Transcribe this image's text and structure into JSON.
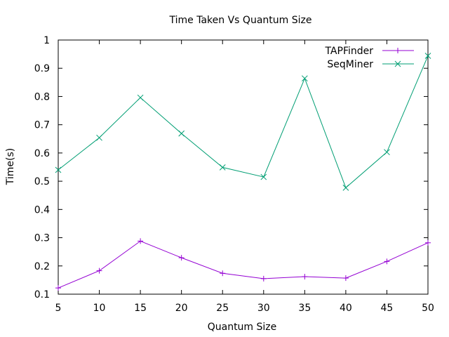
{
  "chart_data": {
    "type": "line",
    "title": "Time Taken Vs Quantum Size",
    "xlabel": "Quantum Size",
    "ylabel": "Time(s)",
    "xlim": [
      5,
      50
    ],
    "ylim": [
      0.1,
      1
    ],
    "x_ticks": [
      5,
      10,
      15,
      20,
      25,
      30,
      35,
      40,
      45,
      50
    ],
    "y_ticks": [
      0.1,
      0.2,
      0.3,
      0.4,
      0.5,
      0.6,
      0.7,
      0.8,
      0.9,
      1
    ],
    "y_tick_labels": [
      "0.1",
      "0.2",
      "0.3",
      "0.4",
      "0.5",
      "0.6",
      "0.7",
      "0.8",
      "0.9",
      "1"
    ],
    "grid": false,
    "legend_position": "top-right",
    "x": [
      5,
      10,
      15,
      20,
      25,
      30,
      35,
      40,
      45,
      50
    ],
    "series": [
      {
        "name": "TAPFinder",
        "color": "#9400d3",
        "marker": "plus",
        "values": [
          0.122,
          0.183,
          0.288,
          0.229,
          0.174,
          0.155,
          0.162,
          0.157,
          0.216,
          0.282
        ]
      },
      {
        "name": "SeqMiner",
        "color": "#009e73",
        "marker": "cross",
        "values": [
          0.54,
          0.654,
          0.796,
          0.669,
          0.549,
          0.515,
          0.864,
          0.477,
          0.603,
          0.944
        ]
      }
    ]
  }
}
